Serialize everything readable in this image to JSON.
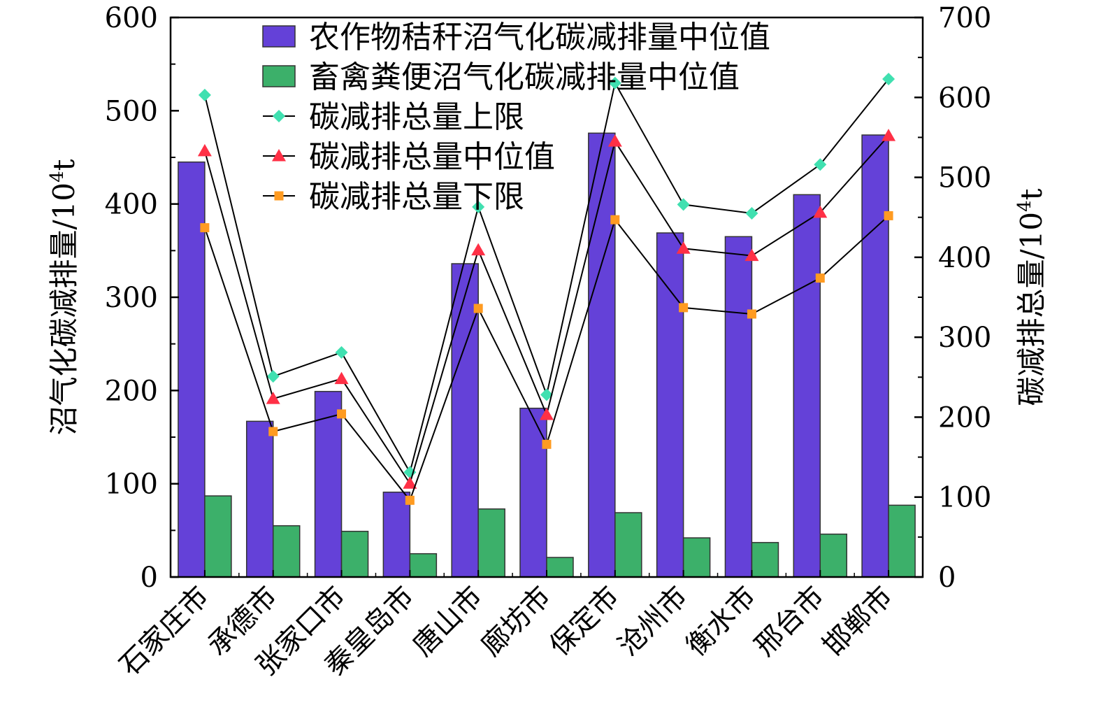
{
  "chart_data": {
    "type": "bar",
    "categories": [
      "石家庄市",
      "承德市",
      "张家口市",
      "秦皇岛市",
      "唐山市",
      "廊坊市",
      "保定市",
      "沧州市",
      "衡水市",
      "邢台市",
      "邯郸市"
    ],
    "left_axis": {
      "label_main": "沼气化碳减排量/10",
      "label_sup": "4",
      "label_unit": "t",
      "ylim": [
        0,
        600
      ],
      "ticks": [
        "0",
        "100",
        "200",
        "300",
        "400",
        "500",
        "600"
      ]
    },
    "right_axis": {
      "label_main": "碳减排总量/10",
      "label_sup": "4",
      "label_unit": "t",
      "ylim": [
        0,
        700
      ],
      "ticks": [
        "0",
        "100",
        "200",
        "300",
        "400",
        "500",
        "600",
        "700"
      ]
    },
    "bar_series": [
      {
        "name": "农作物秸秆沼气化碳减排量中位值",
        "color": "#6441d8",
        "values": [
          445,
          167,
          199,
          91,
          336,
          181,
          476,
          369,
          365,
          410,
          474
        ]
      },
      {
        "name": "畜禽粪便沼气化碳减排量中位值",
        "color": "#3cb06a",
        "values": [
          87,
          55,
          49,
          25,
          73,
          21,
          69,
          42,
          37,
          46,
          77
        ]
      }
    ],
    "line_series": [
      {
        "name": "碳减排总量上限",
        "color": "#40e0b0",
        "marker": "diamond",
        "values": [
          603,
          251,
          281,
          131,
          463,
          228,
          618,
          466,
          455,
          516,
          623
        ]
      },
      {
        "name": "碳减排总量中位值",
        "color": "#ff3046",
        "marker": "triangle",
        "values": [
          533,
          223,
          248,
          117,
          409,
          203,
          545,
          411,
          402,
          456,
          552
        ]
      },
      {
        "name": "碳减排总量下限",
        "color": "#ff9b21",
        "marker": "square",
        "values": [
          437,
          182,
          204,
          96,
          336,
          166,
          447,
          337,
          329,
          374,
          452
        ]
      }
    ],
    "legend_position": "top-center",
    "grid": false
  }
}
